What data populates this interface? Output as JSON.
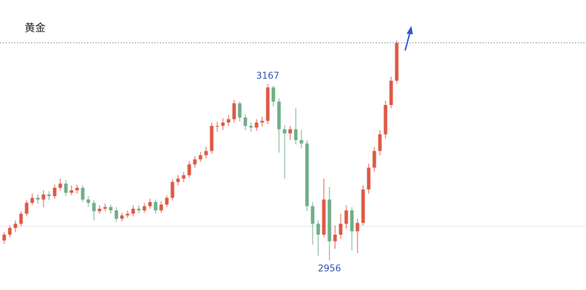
{
  "chart_data": {
    "type": "candlestick",
    "title": "黄金",
    "up_color": "#dd5a45",
    "down_color": "#6fae88",
    "label_color": "#3a55b8",
    "open": [
      2980,
      2987,
      2995,
      3000,
      3012,
      3025,
      3031,
      3029,
      3035,
      3033,
      3043,
      3048,
      3037,
      3040,
      3043,
      3029,
      3025,
      3015,
      3018,
      3020,
      3016,
      3006,
      3010,
      3012,
      3018,
      3016,
      3021,
      3026,
      3016,
      3023,
      3031,
      3050,
      3054,
      3058,
      3071,
      3077,
      3082,
      3087,
      3117,
      3117,
      3121,
      3125,
      3144,
      3127,
      3117,
      3115,
      3121,
      3123,
      3163,
      3146,
      3113,
      3108,
      3113,
      3100,
      3096,
      3021,
      3000,
      2987,
      3029,
      2979,
      2987,
      3000,
      3016,
      2991,
      3001,
      3041,
      3067,
      3087,
      3107,
      3142,
      3171
    ],
    "high": [
      2990,
      2998,
      3004,
      3015,
      3028,
      3036,
      3035,
      3040,
      3039,
      3047,
      3054,
      3052,
      3046,
      3047,
      3046,
      3033,
      3028,
      3022,
      3024,
      3023,
      3020,
      3013,
      3016,
      3022,
      3022,
      3025,
      3030,
      3029,
      3027,
      3034,
      3053,
      3058,
      3062,
      3075,
      3081,
      3086,
      3092,
      3121,
      3122,
      3126,
      3130,
      3148,
      3146,
      3131,
      3121,
      3125,
      3128,
      3167,
      3165,
      3150,
      3118,
      3117,
      3138,
      3112,
      3100,
      3026,
      3004,
      3054,
      3044,
      2998,
      3012,
      3022,
      3020,
      3006,
      3046,
      3072,
      3092,
      3112,
      3147,
      3176,
      3219
    ],
    "low": [
      2976,
      2984,
      2990,
      2997,
      3009,
      3022,
      3024,
      3020,
      3028,
      3030,
      3040,
      3033,
      3034,
      3036,
      3026,
      3020,
      3004,
      3012,
      3015,
      3012,
      3002,
      3003,
      3007,
      3009,
      3012,
      3013,
      3018,
      3012,
      3013,
      3020,
      3028,
      3046,
      3050,
      3055,
      3067,
      3074,
      3078,
      3084,
      3110,
      3112,
      3117,
      3121,
      3122,
      3112,
      3110,
      3111,
      3116,
      3119,
      3140,
      3085,
      3054,
      3100,
      3095,
      3090,
      3015,
      2975,
      2962,
      2984,
      2956,
      2970,
      2982,
      2994,
      2968,
      2965,
      2998,
      3036,
      3062,
      3082,
      3102,
      3138,
      3168
    ],
    "close": [
      2987,
      2995,
      3000,
      3012,
      3025,
      3031,
      3029,
      3035,
      3033,
      3043,
      3048,
      3037,
      3040,
      3043,
      3029,
      3025,
      3015,
      3018,
      3020,
      3016,
      3006,
      3010,
      3012,
      3018,
      3016,
      3021,
      3026,
      3016,
      3023,
      3031,
      3050,
      3054,
      3058,
      3071,
      3077,
      3082,
      3087,
      3117,
      3117,
      3121,
      3125,
      3144,
      3127,
      3117,
      3115,
      3121,
      3123,
      3163,
      3146,
      3113,
      3108,
      3113,
      3100,
      3096,
      3021,
      3000,
      2987,
      3029,
      2979,
      2987,
      3000,
      3016,
      2991,
      3001,
      3041,
      3067,
      3087,
      3107,
      3142,
      3171,
      3216
    ],
    "annotations": [
      {
        "value": 3167,
        "label": "3167"
      },
      {
        "value": 2956,
        "label": "2956"
      }
    ]
  }
}
